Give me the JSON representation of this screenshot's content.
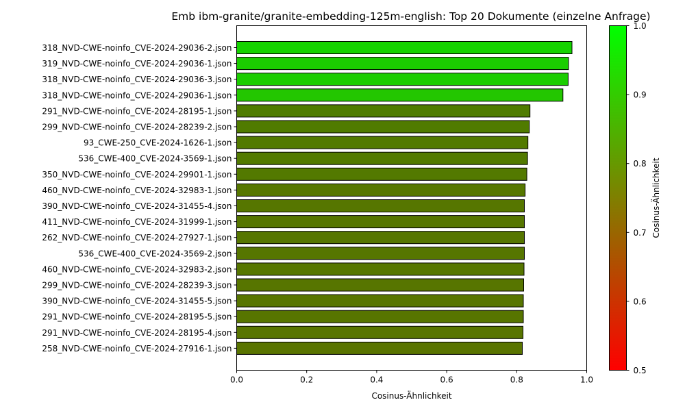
{
  "chart_data": {
    "type": "bar",
    "orientation": "horizontal",
    "title": "Emb ibm-granite/granite-embedding-125m-english: Top 20 Dokumente (einzelne Anfrage)",
    "xlabel": "Cosinus-Ähnlichkeit",
    "ylabel": "",
    "xlim": [
      0.0,
      1.0
    ],
    "xticks": [
      "0.0",
      "0.2",
      "0.4",
      "0.6",
      "0.8",
      "1.0"
    ],
    "grid": false,
    "categories": [
      "318_NVD-CWE-noinfo_CVE-2024-29036-2.json",
      "319_NVD-CWE-noinfo_CVE-2024-29036-1.json",
      "318_NVD-CWE-noinfo_CVE-2024-29036-3.json",
      "318_NVD-CWE-noinfo_CVE-2024-29036-1.json",
      "291_NVD-CWE-noinfo_CVE-2024-28195-1.json",
      "299_NVD-CWE-noinfo_CVE-2024-28239-2.json",
      "93_CWE-250_CVE-2024-1626-1.json",
      "536_CWE-400_CVE-2024-3569-1.json",
      "350_NVD-CWE-noinfo_CVE-2024-29901-1.json",
      "460_NVD-CWE-noinfo_CVE-2024-32983-1.json",
      "390_NVD-CWE-noinfo_CVE-2024-31455-4.json",
      "411_NVD-CWE-noinfo_CVE-2024-31999-1.json",
      "262_NVD-CWE-noinfo_CVE-2024-27927-1.json",
      "536_CWE-400_CVE-2024-3569-2.json",
      "460_NVD-CWE-noinfo_CVE-2024-32983-2.json",
      "299_NVD-CWE-noinfo_CVE-2024-28239-3.json",
      "390_NVD-CWE-noinfo_CVE-2024-31455-5.json",
      "291_NVD-CWE-noinfo_CVE-2024-28195-5.json",
      "291_NVD-CWE-noinfo_CVE-2024-28195-4.json",
      "258_NVD-CWE-noinfo_CVE-2024-27916-1.json"
    ],
    "values": [
      0.958,
      0.948,
      0.947,
      0.932,
      0.838,
      0.836,
      0.832,
      0.831,
      0.829,
      0.824,
      0.822,
      0.822,
      0.822,
      0.822,
      0.821,
      0.82,
      0.819,
      0.819,
      0.818,
      0.816
    ],
    "colorbar": {
      "label": "Cosinus-Ähnlichkeit",
      "range": [
        0.5,
        1.0
      ],
      "ticks": [
        "0.5",
        "0.6",
        "0.7",
        "0.8",
        "0.9",
        "1.0"
      ],
      "low_color": "#ff0000",
      "high_color": "#00ff00"
    },
    "bar_edge_color": "#000000"
  }
}
